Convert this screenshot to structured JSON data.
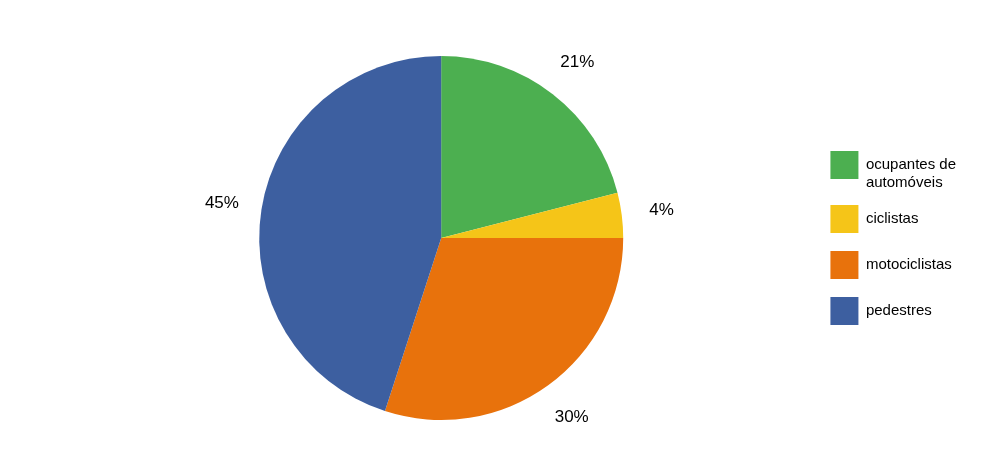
{
  "chart_data": {
    "type": "pie",
    "categories": [
      "ocupantes de\nautomóveis",
      "ciclistas",
      "motociclistas",
      "pedestres"
    ],
    "values": [
      21,
      4,
      30,
      45
    ],
    "value_labels": [
      "21%",
      "4%",
      "30%",
      "45%"
    ],
    "colors": [
      "#4caf50",
      "#f5c518",
      "#e8720c",
      "#3d5fa0"
    ],
    "data_labels": true,
    "legend": "right"
  }
}
